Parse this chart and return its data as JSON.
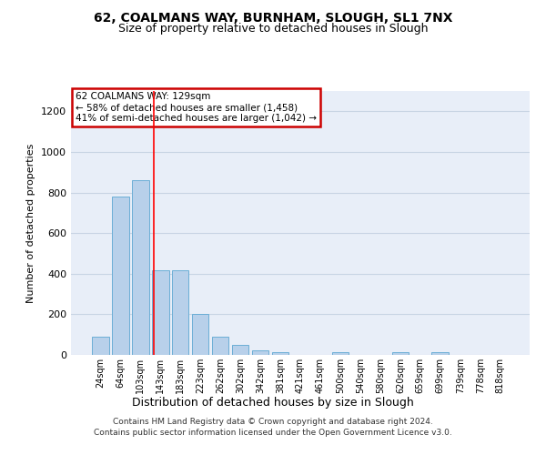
{
  "title": "62, COALMANS WAY, BURNHAM, SLOUGH, SL1 7NX",
  "subtitle": "Size of property relative to detached houses in Slough",
  "xlabel": "Distribution of detached houses by size in Slough",
  "ylabel": "Number of detached properties",
  "footer_line1": "Contains HM Land Registry data © Crown copyright and database right 2024.",
  "footer_line2": "Contains public sector information licensed under the Open Government Licence v3.0.",
  "categories": [
    "24sqm",
    "64sqm",
    "103sqm",
    "143sqm",
    "183sqm",
    "223sqm",
    "262sqm",
    "302sqm",
    "342sqm",
    "381sqm",
    "421sqm",
    "461sqm",
    "500sqm",
    "540sqm",
    "580sqm",
    "620sqm",
    "659sqm",
    "699sqm",
    "739sqm",
    "778sqm",
    "818sqm"
  ],
  "values": [
    90,
    780,
    860,
    415,
    415,
    200,
    90,
    50,
    22,
    15,
    0,
    0,
    12,
    0,
    0,
    12,
    0,
    12,
    0,
    0,
    0
  ],
  "bar_color": "#b8d0ea",
  "bar_edge_color": "#6baed6",
  "grid_color": "#c8d4e4",
  "background_color": "#e8eef8",
  "red_line_x": 2.69,
  "annotation_text": "62 COALMANS WAY: 129sqm\n← 58% of detached houses are smaller (1,458)\n41% of semi-detached houses are larger (1,042) →",
  "annotation_box_color": "#ffffff",
  "annotation_box_edge": "#cc0000",
  "ylim": [
    0,
    1300
  ],
  "yticks": [
    0,
    200,
    400,
    600,
    800,
    1000,
    1200
  ],
  "title_fontsize": 10,
  "subtitle_fontsize": 9
}
